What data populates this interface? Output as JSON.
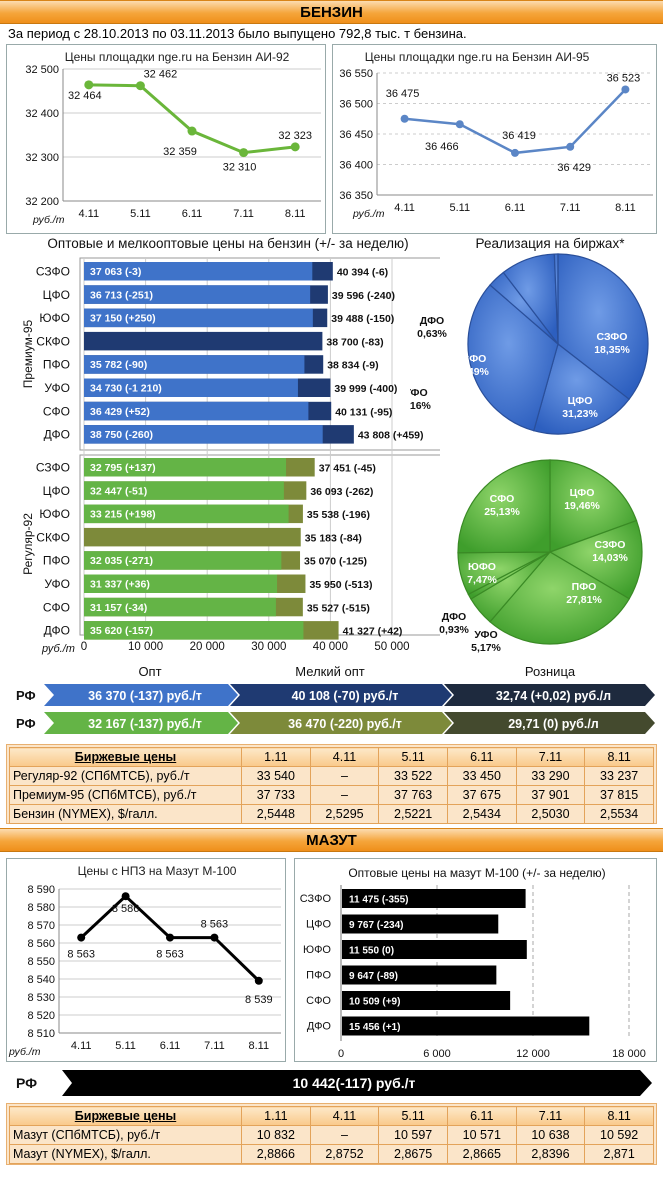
{
  "benzin": {
    "title": "БЕНЗИН",
    "period_text": "За период  с 28.10.2013  по 03.11.2013  было выпущено 792,8 тыс. т бензина.",
    "ai92": {
      "title": "Цены площадки nge.ru  на Бензин АИ-92",
      "unit": "руб./т",
      "color": "#6ab63a",
      "chart_data": {
        "type": "line",
        "categories": [
          "4.11",
          "5.11",
          "6.11",
          "7.11",
          "8.11"
        ],
        "values": [
          32464,
          32462,
          32359,
          32310,
          32323
        ],
        "labels": [
          "32 464",
          "32 462",
          "32 359",
          "32 310",
          "32 323"
        ],
        "ylim": [
          32200,
          32500
        ],
        "yticks": [
          32200,
          32300,
          32400,
          32500
        ],
        "ytick_labels": [
          "32 200",
          "32 300",
          "32 400",
          "32 500"
        ]
      }
    },
    "ai95": {
      "title": "Цены площадки nge.ru на Бензин АИ-95",
      "unit": "руб./т",
      "color": "#5b86c6",
      "chart_data": {
        "type": "line",
        "categories": [
          "4.11",
          "5.11",
          "6.11",
          "7.11",
          "8.11"
        ],
        "values": [
          36475,
          36466,
          36419,
          36429,
          36523
        ],
        "labels": [
          "36 475",
          "36 466",
          "36 419",
          "36 429",
          "36 523"
        ],
        "ylim": [
          36350,
          36550
        ],
        "yticks": [
          36350,
          36400,
          36450,
          36500,
          36550
        ],
        "ytick_labels": [
          "36 350",
          "36 400",
          "36 450",
          "36 500",
          "36 550"
        ]
      }
    },
    "wholesale": {
      "title": "Оптовые  и мелкооптовые цены на бензин (+/- за неделю)",
      "unit": "руб./т",
      "group_premium": "Премиум-95",
      "group_regular": "Регуляр-92",
      "xticks": [
        0,
        10000,
        20000,
        30000,
        40000,
        50000
      ],
      "xtick_labels": [
        "0",
        "10 000",
        "20 000",
        "30 000",
        "40 000",
        "50 000"
      ],
      "xmax": 50000,
      "premium": [
        {
          "region": "СЗФО",
          "opt": 37063,
          "opt_label": "37 063 (-3)",
          "melk": 40394,
          "melk_label": "40 394 (-6)"
        },
        {
          "region": "ЦФО",
          "opt": 36713,
          "opt_label": "36 713 (-251)",
          "melk": 39596,
          "melk_label": "39 596 (-240)"
        },
        {
          "region": "ЮФО",
          "opt": 37150,
          "opt_label": "37 150 (+250)",
          "melk": 39488,
          "melk_label": "39 488 (-150)"
        },
        {
          "region": "СКФО",
          "opt": null,
          "opt_label": "",
          "melk": 38700,
          "melk_label": "38 700 (-83)"
        },
        {
          "region": "ПФО",
          "opt": 35782,
          "opt_label": "35 782 (-90)",
          "melk": 38834,
          "melk_label": "38 834 (-9)"
        },
        {
          "region": "УФО",
          "opt": 34730,
          "opt_label": "34 730 (-1 210)",
          "melk": 39999,
          "melk_label": "39 999 (-400)"
        },
        {
          "region": "СФО",
          "opt": 36429,
          "opt_label": "36 429 (+52)",
          "melk": 40131,
          "melk_label": "40 131 (-95)"
        },
        {
          "region": "ДФО",
          "opt": 38750,
          "opt_label": "38 750 (-260)",
          "melk": 43808,
          "melk_label": "43 808 (+459)"
        }
      ],
      "regular": [
        {
          "region": "СЗФО",
          "opt": 32795,
          "opt_label": "32 795 (+137)",
          "melk": 37451,
          "melk_label": "37 451 (-45)"
        },
        {
          "region": "ЦФО",
          "opt": 32447,
          "opt_label": "32 447 (-51)",
          "melk": 36093,
          "melk_label": "36 093 (-262)"
        },
        {
          "region": "ЮФО",
          "opt": 33215,
          "opt_label": "33 215 (+198)",
          "melk": 35538,
          "melk_label": "35 538 (-196)"
        },
        {
          "region": "СКФО",
          "opt": null,
          "opt_label": "",
          "melk": 35183,
          "melk_label": "35 183 (-84)"
        },
        {
          "region": "ПФО",
          "opt": 32035,
          "opt_label": "32 035 (-271)",
          "melk": 35070,
          "melk_label": "35 070  (-125)"
        },
        {
          "region": "УФО",
          "opt": 31337,
          "opt_label": "31 337 (+36)",
          "melk": 35950,
          "melk_label": "35 950 (-513)"
        },
        {
          "region": "СФО",
          "opt": 31157,
          "opt_label": "31 157 (-34)",
          "melk": 35527,
          "melk_label": "35 527 (-515)"
        },
        {
          "region": "ДФО",
          "opt": 35620,
          "opt_label": "35 620 (-157)",
          "melk": 41327,
          "melk_label": "41 327 (+42)"
        }
      ]
    },
    "exchange_sales": {
      "title": "Реализация на биржах*",
      "premium": {
        "chart_data": {
          "type": "pie",
          "slices": [
            {
              "name": "ПФО",
              "value": 34.61,
              "label": "34,61%"
            },
            {
              "name": "СЗФО",
              "value": 18.35,
              "label": "18,35%"
            },
            {
              "name": "ЦФО",
              "value": 31.23,
              "label": "31,23%"
            },
            {
              "name": "УФО",
              "value": 3.16,
              "label": "3,16%"
            },
            {
              "name": "СФО",
              "value": 9.49,
              "label": "9,49%"
            },
            {
              "name": "ДФО",
              "value": 0.63,
              "label": "0,63%"
            }
          ]
        }
      },
      "regular": {
        "chart_data": {
          "type": "pie",
          "slices": [
            {
              "name": "ЦФО",
              "value": 19.46,
              "label": "19,46%"
            },
            {
              "name": "СЗФО",
              "value": 14.03,
              "label": "14,03%"
            },
            {
              "name": "ПФО",
              "value": 27.81,
              "label": "27,81%"
            },
            {
              "name": "УФО",
              "value": 5.17,
              "label": "5,17%"
            },
            {
              "name": "ДФО",
              "value": 0.93,
              "label": "0,93%"
            },
            {
              "name": "ЮФО",
              "value": 7.47,
              "label": "7,47%"
            },
            {
              "name": "СФО",
              "value": 25.13,
              "label": "25,13%"
            }
          ]
        }
      }
    },
    "rf_summary": {
      "headers": [
        "Опт",
        "Мелкий опт",
        "Розница"
      ],
      "label": "РФ",
      "premium": [
        "36 370 (-137) руб./т",
        "40 108 (-70) руб./т",
        "32,74 (+0,02) руб./л"
      ],
      "regular": [
        "32 167 (-137) руб./т",
        "36 470 (-220) руб./т",
        "29,71 (0) руб./л"
      ]
    },
    "exchange_table": {
      "title": "Биржевые цены",
      "dates": [
        "1.11",
        "4.11",
        "5.11",
        "6.11",
        "7.11",
        "8.11"
      ],
      "rows": [
        {
          "name": "Регуляр-92 (СПбМТСБ), руб./т",
          "values": [
            "33 540",
            "–",
            "33 522",
            "33 450",
            "33 290",
            "33 237"
          ]
        },
        {
          "name": "Премиум-95 (СПбМТСБ), руб./т",
          "values": [
            "37 733",
            "–",
            "37 763",
            "37 675",
            "37 901",
            "37 815"
          ]
        },
        {
          "name": "Бензин (NYMEX), $/галл.",
          "values": [
            "2,5448",
            "2,5295",
            "2,5221",
            "2,5434",
            "2,5030",
            "2,5534"
          ]
        }
      ]
    }
  },
  "mazut": {
    "title": "МАЗУТ",
    "npz": {
      "title": "Цены с НПЗ на Мазут М-100",
      "unit": "руб./т",
      "chart_data": {
        "type": "line",
        "categories": [
          "4.11",
          "5.11",
          "6.11",
          "7.11",
          "8.11"
        ],
        "values": [
          8563,
          8586,
          8563,
          8563,
          8539
        ],
        "labels": [
          "8 563",
          "8 586",
          "8 563",
          "8 563",
          "8 539"
        ],
        "ylim": [
          8510,
          8590
        ],
        "yticks": [
          8510,
          8520,
          8530,
          8540,
          8550,
          8560,
          8570,
          8580,
          8590
        ],
        "ytick_labels": [
          "8 510",
          "8 520",
          "8 530",
          "8 540",
          "8 550",
          "8 560",
          "8 570",
          "8 580",
          "8 590"
        ]
      }
    },
    "wholesale": {
      "title": "Оптовые цены на мазут М-100 (+/- за неделю)",
      "chart_data": {
        "type": "bar",
        "categories": [
          "СЗФО",
          "ЦФО",
          "ЮФО",
          "ПФО",
          "СФО",
          "ДФО"
        ],
        "values": [
          11475,
          9767,
          11550,
          9647,
          10509,
          15456
        ],
        "labels": [
          "11 475 (-355)",
          "9 767 (-234)",
          "11 550 (0)",
          "9 647 (-89)",
          "10 509 (+9)",
          "15 456 (+1)"
        ],
        "xlim": [
          0,
          18000
        ],
        "xticks": [
          0,
          6000,
          12000,
          18000
        ],
        "xtick_labels": [
          "0",
          "6 000",
          "12 000",
          "18 000"
        ]
      }
    },
    "rf_label": "РФ",
    "rf_value": "10 442(-117) руб./т",
    "exchange_table": {
      "title": "Биржевые цены",
      "dates": [
        "1.11",
        "4.11",
        "5.11",
        "6.11",
        "7.11",
        "8.11"
      ],
      "rows": [
        {
          "name": "Мазут (СПбМТСБ), руб./т",
          "values": [
            "10 832",
            "–",
            "10 597",
            "10 571",
            "10 638",
            "10 592"
          ]
        },
        {
          "name": "Мазут (NYMEX), $/галл.",
          "values": [
            "2,8866",
            "2,8752",
            "2,8675",
            "2,8665",
            "2,8396",
            "2,871"
          ]
        }
      ]
    }
  }
}
